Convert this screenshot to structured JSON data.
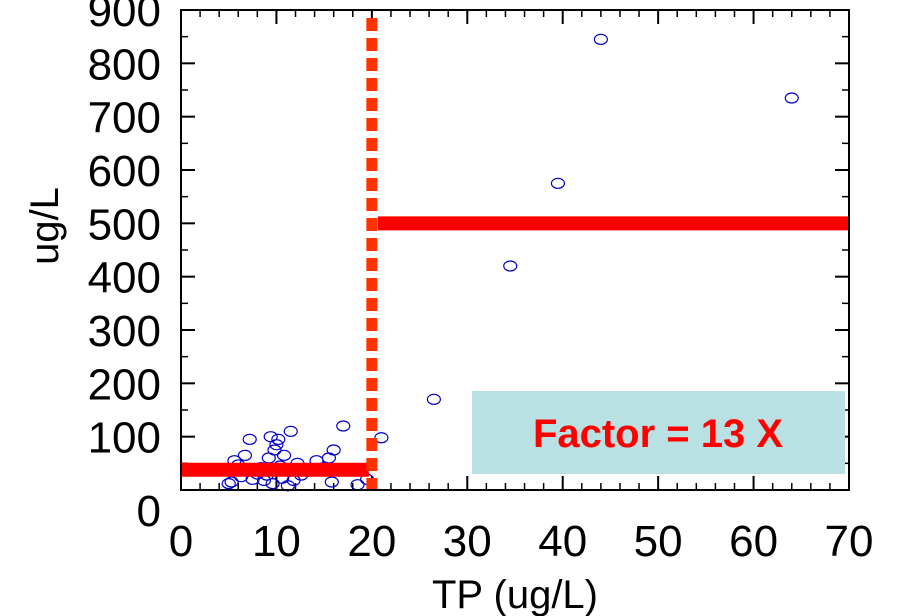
{
  "chart_data": {
    "type": "scatter",
    "title": "",
    "xlabel": "TP (ug/L)",
    "ylabel": "ug/L",
    "xlim": [
      0,
      70
    ],
    "ylim": [
      0,
      900
    ],
    "x_ticks": [
      0,
      10,
      20,
      30,
      40,
      50,
      60,
      70
    ],
    "y_ticks": [
      0,
      100,
      200,
      300,
      400,
      500,
      600,
      700,
      800,
      900
    ],
    "x_tick_labels": [
      "0",
      "10",
      "20",
      "30",
      "40",
      "50",
      "60",
      "70"
    ],
    "y_tick_labels": [
      "0",
      "100",
      "200",
      "300",
      "400",
      "500",
      "600",
      "700",
      "800",
      "900"
    ],
    "grid": false,
    "series": [
      {
        "marker": "open-circle",
        "color": "#0000cc",
        "points": [
          {
            "x": 5,
            "y": 12
          },
          {
            "x": 5.3,
            "y": 15
          },
          {
            "x": 5.6,
            "y": 55
          },
          {
            "x": 6,
            "y": 47
          },
          {
            "x": 6.3,
            "y": 25
          },
          {
            "x": 6.7,
            "y": 65
          },
          {
            "x": 7,
            "y": 35
          },
          {
            "x": 7.2,
            "y": 95
          },
          {
            "x": 7.5,
            "y": 20
          },
          {
            "x": 8,
            "y": 30
          },
          {
            "x": 8.4,
            "y": 42
          },
          {
            "x": 8.7,
            "y": 18
          },
          {
            "x": 9,
            "y": 28
          },
          {
            "x": 9.2,
            "y": 60
          },
          {
            "x": 9.4,
            "y": 100
          },
          {
            "x": 9.6,
            "y": 12
          },
          {
            "x": 9.8,
            "y": 75
          },
          {
            "x": 10,
            "y": 85
          },
          {
            "x": 10.2,
            "y": 95
          },
          {
            "x": 10.4,
            "y": 45
          },
          {
            "x": 10.6,
            "y": 22
          },
          {
            "x": 10.8,
            "y": 65
          },
          {
            "x": 11,
            "y": 40
          },
          {
            "x": 11.2,
            "y": 8
          },
          {
            "x": 11.5,
            "y": 110
          },
          {
            "x": 11.8,
            "y": 18
          },
          {
            "x": 12.2,
            "y": 50
          },
          {
            "x": 12.6,
            "y": 28
          },
          {
            "x": 13.2,
            "y": 35
          },
          {
            "x": 14.2,
            "y": 55
          },
          {
            "x": 15,
            "y": 42
          },
          {
            "x": 15.5,
            "y": 60
          },
          {
            "x": 15.8,
            "y": 15
          },
          {
            "x": 16,
            "y": 75
          },
          {
            "x": 17,
            "y": 120
          },
          {
            "x": 18.5,
            "y": 10
          },
          {
            "x": 19.5,
            "y": 20
          },
          {
            "x": 21,
            "y": 98
          },
          {
            "x": 26.5,
            "y": 170
          },
          {
            "x": 34.5,
            "y": 420
          },
          {
            "x": 39.5,
            "y": 575
          },
          {
            "x": 44,
            "y": 845
          },
          {
            "x": 64,
            "y": 735
          }
        ]
      }
    ],
    "annotations": {
      "threshold_x": 20,
      "threshold_color": "#ff3300",
      "low_mean": {
        "x_start": 0,
        "x_end": 20,
        "y": 38,
        "color": "#ff0000"
      },
      "high_mean": {
        "x_start": 20,
        "x_end": 70,
        "y": 500,
        "color": "#ff0000"
      },
      "factor_label": "Factor = 13 X",
      "factor_text_color": "#ff0000",
      "factor_box_color": "#b9e0e3"
    }
  }
}
